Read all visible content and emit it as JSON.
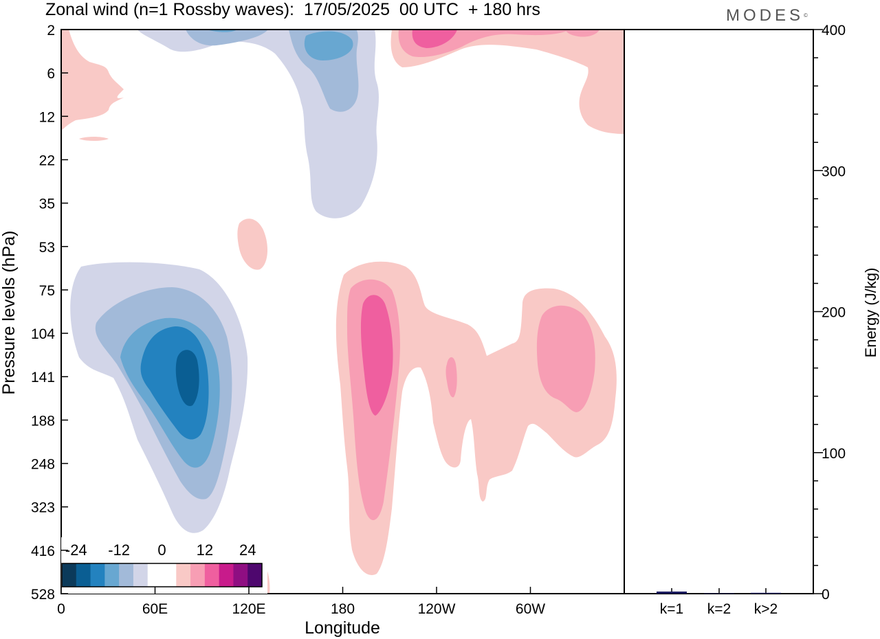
{
  "title": "Zonal wind (n=1 Rossby waves):  17/05/2025  00 UTC  + 180 hrs",
  "logo": "MODES",
  "main_chart": {
    "type": "heatmap",
    "xlabel": "Longitude",
    "ylabel": "Pressure levels (hPa)",
    "x_ticks": [
      "0",
      "60E",
      "120E",
      "180",
      "120W",
      "60W"
    ],
    "y_ticks": [
      "2",
      "6",
      "12",
      "22",
      "35",
      "53",
      "75",
      "104",
      "141",
      "188",
      "248",
      "323",
      "416",
      "528"
    ],
    "colorbar": {
      "labels": [
        "-24",
        "-12",
        "0",
        "12",
        "24"
      ],
      "colors": [
        "#0b3a5a",
        "#0a5e93",
        "#2382bf",
        "#68a7d1",
        "#a2bad9",
        "#d2d5e8",
        "#ffffff",
        "#ffffff",
        "#f9c9c6",
        "#f79eb4",
        "#ef5f9f",
        "#c81b8b",
        "#8f0e82",
        "#4e076e"
      ]
    }
  },
  "energy_chart": {
    "type": "bar",
    "ylabel": "Energy (J/kg)",
    "categories": [
      "k=1",
      "k=2",
      "k>2"
    ],
    "values": [
      1.5,
      0.3,
      0.6
    ],
    "ylim": [
      0,
      400
    ],
    "y_ticks": [
      "0",
      "100",
      "200",
      "300",
      "400"
    ],
    "bar_color": "#1a1a5e"
  }
}
